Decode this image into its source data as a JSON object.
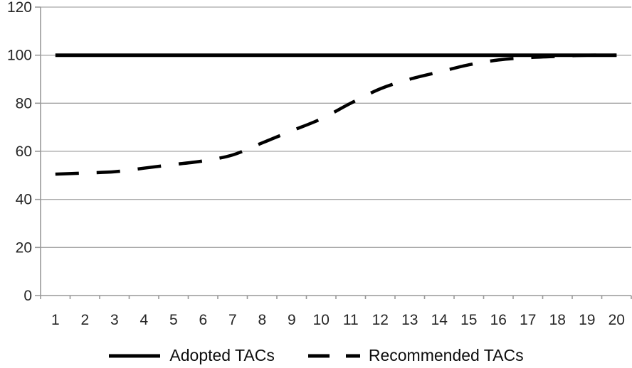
{
  "chart_data": {
    "type": "line",
    "title": "",
    "xlabel": "",
    "ylabel": "",
    "categories": [
      "1",
      "2",
      "3",
      "4",
      "5",
      "6",
      "7",
      "8",
      "9",
      "10",
      "11",
      "12",
      "13",
      "14",
      "15",
      "16",
      "17",
      "18",
      "19",
      "20"
    ],
    "ylim": [
      0,
      120
    ],
    "yticks": [
      0,
      20,
      40,
      60,
      80,
      100,
      120
    ],
    "grid": true,
    "legend_position": "bottom",
    "series": [
      {
        "name": "Adopted TACs",
        "line_style": "solid",
        "color": "#000000",
        "values": [
          100,
          100,
          100,
          100,
          100,
          100,
          100,
          100,
          100,
          100,
          100,
          100,
          100,
          100,
          100,
          100,
          100,
          100,
          100,
          100
        ]
      },
      {
        "name": "Recommended TACs",
        "line_style": "dashed",
        "color": "#000000",
        "values": [
          50.5,
          51,
          51.5,
          53,
          54.5,
          56,
          58.5,
          63.5,
          68.5,
          73.5,
          80,
          86,
          90,
          93,
          96,
          98,
          99,
          99.5,
          100,
          100
        ]
      }
    ]
  },
  "colors": {
    "background": "#ffffff",
    "gridline": "#a6a6a6",
    "axis": "#999999",
    "tick_label": "#262626",
    "legend_text": "#0d0d0d"
  }
}
